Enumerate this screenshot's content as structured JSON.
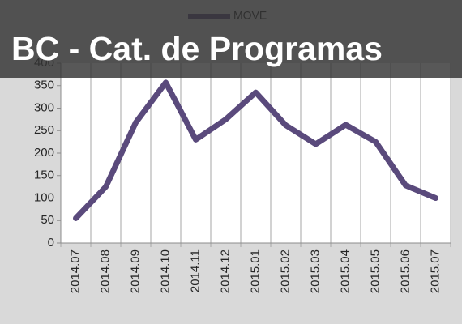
{
  "chart_data": {
    "type": "line",
    "title": "BC - Cat. de Programas",
    "categories": [
      "2014.07",
      "2014.08",
      "2014.09",
      "2014.10",
      "2014.11",
      "2014.12",
      "2015.01",
      "2015.02",
      "2015.03",
      "2015.04",
      "2015.05",
      "2015.06",
      "2015.07"
    ],
    "series": [
      {
        "name": "MOVE",
        "color": "#5a4a7c",
        "values": [
          55,
          125,
          268,
          357,
          230,
          275,
          335,
          262,
          220,
          263,
          225,
          128,
          100
        ]
      }
    ],
    "ylim": [
      0,
      400
    ],
    "yticks": [
      0,
      50,
      100,
      150,
      200,
      250,
      300,
      350,
      400
    ],
    "grid": false,
    "legend": "top"
  }
}
